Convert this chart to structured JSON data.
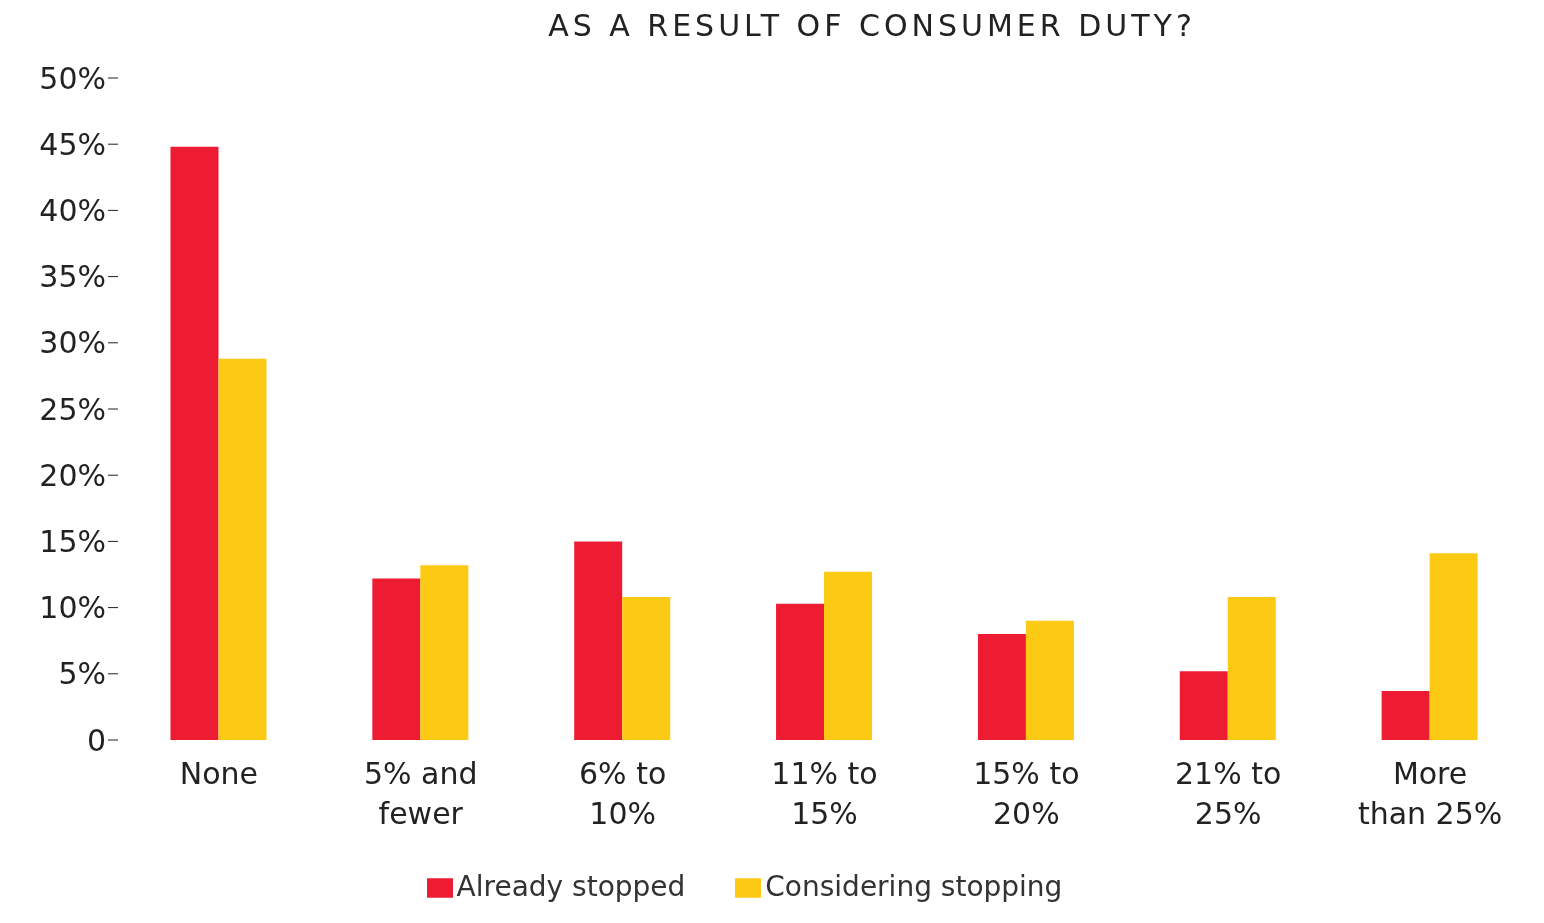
{
  "chart_data": {
    "type": "bar",
    "title": "AS A RESULT OF CONSUMER DUTY?",
    "categories": [
      "None",
      "5% and fewer",
      "6% to 10%",
      "11% to 15%",
      "15% to 20%",
      "21% to 25%",
      "More than 25%"
    ],
    "series": [
      {
        "name": "Already stopped",
        "color": "#ed1c33",
        "values": [
          44.8,
          12.2,
          15.0,
          10.3,
          8.0,
          5.2,
          3.7
        ]
      },
      {
        "name": "Considering stopping",
        "color": "#fcc914",
        "values": [
          28.8,
          13.2,
          10.8,
          12.7,
          9.0,
          10.8,
          14.1
        ]
      }
    ],
    "ylim": [
      0,
      50
    ],
    "yticks": [
      {
        "value": 0,
        "label": "0"
      },
      {
        "value": 5,
        "label": "5%"
      },
      {
        "value": 10,
        "label": "10%"
      },
      {
        "value": 15,
        "label": "15%"
      },
      {
        "value": 20,
        "label": "20%"
      },
      {
        "value": 25,
        "label": "25%"
      },
      {
        "value": 30,
        "label": "30%"
      },
      {
        "value": 35,
        "label": "35%"
      },
      {
        "value": 40,
        "label": "40%"
      },
      {
        "value": 45,
        "label": "45%"
      },
      {
        "value": 50,
        "label": "50%"
      }
    ],
    "grid": false,
    "legend": "bottom"
  }
}
